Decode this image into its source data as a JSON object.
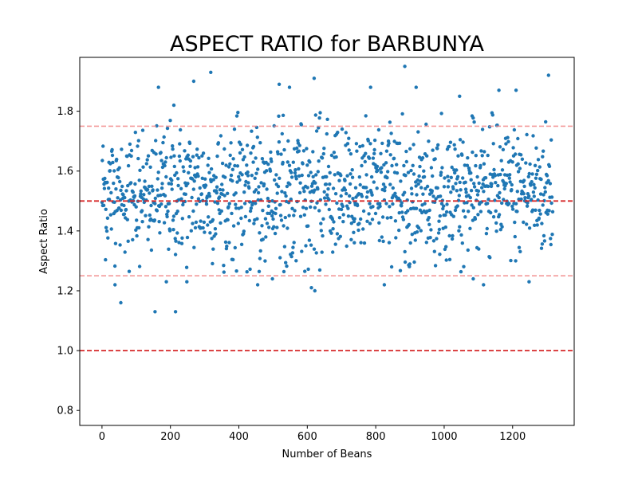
{
  "chart_data": {
    "type": "scatter",
    "title": "ASPECT RATIO for BARBUNYA",
    "xlabel": "Number of Beans",
    "ylabel": "Aspect Ratio",
    "xlim": [
      -65,
      1380
    ],
    "ylim": [
      0.75,
      1.98
    ],
    "xticks": [
      0,
      200,
      400,
      600,
      800,
      1000,
      1200
    ],
    "yticks": [
      0.8,
      1.0,
      1.2,
      1.4,
      1.6,
      1.8
    ],
    "ytick_labels": [
      "0.8",
      "1.0",
      "1.2",
      "1.4",
      "1.6",
      "1.8"
    ],
    "grid": false,
    "n_points": 1322,
    "point_color": "#1f77b4",
    "reference_lines": [
      {
        "y": 1.5,
        "color": "#d62728",
        "style": "dashed",
        "opacity": 1.0
      },
      {
        "y": 1.0,
        "color": "#d62728",
        "style": "dashed",
        "opacity": 1.0
      },
      {
        "y": 1.75,
        "color": "#f08080",
        "style": "dashed",
        "opacity": 0.8
      },
      {
        "y": 1.25,
        "color": "#f08080",
        "style": "dashed",
        "opacity": 0.8
      }
    ],
    "outliers": [
      {
        "x": 165,
        "y": 1.88
      },
      {
        "x": 210,
        "y": 1.82
      },
      {
        "x": 268,
        "y": 1.9
      },
      {
        "x": 318,
        "y": 1.93
      },
      {
        "x": 518,
        "y": 1.89
      },
      {
        "x": 548,
        "y": 1.88
      },
      {
        "x": 620,
        "y": 1.91
      },
      {
        "x": 785,
        "y": 1.88
      },
      {
        "x": 885,
        "y": 1.95
      },
      {
        "x": 918,
        "y": 1.88
      },
      {
        "x": 1305,
        "y": 1.92
      },
      {
        "x": 1160,
        "y": 1.87
      },
      {
        "x": 1210,
        "y": 1.87
      },
      {
        "x": 1045,
        "y": 1.85
      },
      {
        "x": 55,
        "y": 1.16
      },
      {
        "x": 155,
        "y": 1.13
      },
      {
        "x": 215,
        "y": 1.13
      },
      {
        "x": 38,
        "y": 1.22
      },
      {
        "x": 188,
        "y": 1.23
      },
      {
        "x": 248,
        "y": 1.23
      },
      {
        "x": 455,
        "y": 1.22
      },
      {
        "x": 612,
        "y": 1.21
      },
      {
        "x": 622,
        "y": 1.2
      },
      {
        "x": 825,
        "y": 1.22
      },
      {
        "x": 1115,
        "y": 1.22
      },
      {
        "x": 1248,
        "y": 1.23
      },
      {
        "x": 1085,
        "y": 1.24
      },
      {
        "x": 498,
        "y": 1.24
      }
    ]
  }
}
